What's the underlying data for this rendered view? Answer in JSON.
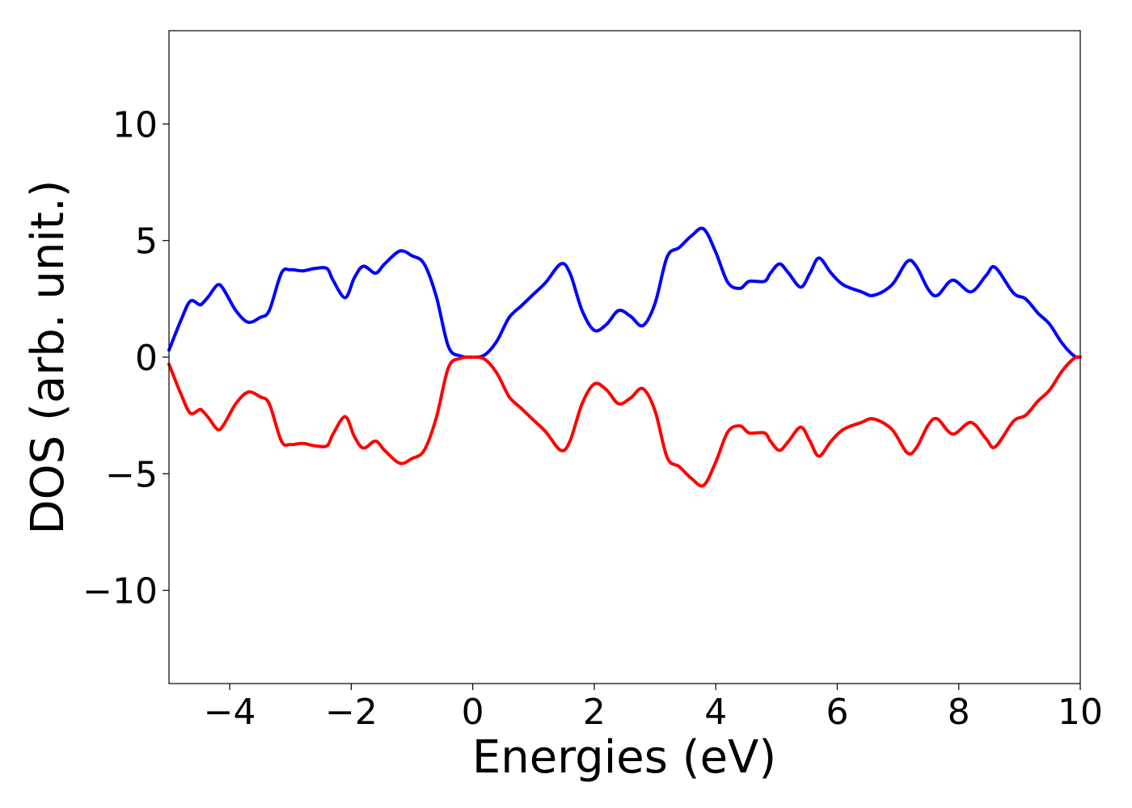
{
  "chart_data": {
    "type": "line",
    "title": "",
    "xlabel": "Energies (eV)",
    "ylabel": "DOS (arb. unit.)",
    "xlim": [
      -5,
      10
    ],
    "ylim": [
      -14,
      14
    ],
    "xticks": [
      -4,
      -2,
      0,
      2,
      4,
      6,
      8,
      10
    ],
    "xtick_labels": [
      "−4",
      "−2",
      "0",
      "2",
      "4",
      "6",
      "8",
      "10"
    ],
    "yticks": [
      -10,
      -5,
      0,
      5,
      10
    ],
    "ytick_labels": [
      "−10",
      "−5",
      "0",
      "5",
      "10"
    ],
    "grid": false,
    "legend": "none",
    "series": [
      {
        "color": "#0000ff",
        "x": [
          -5.0,
          -4.8,
          -4.65,
          -4.5,
          -4.45,
          -4.35,
          -4.2,
          -4.1,
          -3.9,
          -3.7,
          -3.5,
          -3.35,
          -3.15,
          -3.0,
          -2.8,
          -2.6,
          -2.4,
          -2.3,
          -2.1,
          -1.95,
          -1.8,
          -1.6,
          -1.45,
          -1.2,
          -1.0,
          -0.8,
          -0.6,
          -0.4,
          -0.2,
          0.0,
          0.2,
          0.4,
          0.6,
          0.8,
          1.0,
          1.2,
          1.45,
          1.6,
          1.8,
          2.0,
          2.2,
          2.4,
          2.6,
          2.8,
          3.0,
          3.2,
          3.4,
          3.6,
          3.8,
          4.0,
          4.2,
          4.4,
          4.55,
          4.8,
          4.9,
          5.05,
          5.2,
          5.4,
          5.55,
          5.7,
          5.9,
          6.1,
          6.4,
          6.6,
          6.9,
          7.15,
          7.3,
          7.5,
          7.65,
          7.9,
          8.2,
          8.45,
          8.6,
          8.9,
          9.1,
          9.3,
          9.5,
          9.7,
          9.9,
          10.0
        ],
        "values": [
          0.3,
          1.6,
          2.4,
          2.25,
          2.3,
          2.6,
          3.1,
          2.9,
          2.0,
          1.5,
          1.7,
          2.0,
          3.6,
          3.75,
          3.7,
          3.8,
          3.8,
          3.3,
          2.55,
          3.4,
          3.9,
          3.6,
          4.0,
          4.55,
          4.35,
          4.0,
          2.6,
          0.45,
          0.05,
          0.0,
          0.1,
          0.7,
          1.7,
          2.2,
          2.7,
          3.2,
          4.0,
          3.6,
          2.0,
          1.15,
          1.4,
          2.0,
          1.75,
          1.35,
          2.3,
          4.3,
          4.7,
          5.2,
          5.5,
          4.5,
          3.2,
          2.95,
          3.25,
          3.25,
          3.6,
          4.0,
          3.6,
          3.0,
          3.6,
          4.25,
          3.6,
          3.1,
          2.8,
          2.65,
          3.1,
          4.1,
          3.9,
          2.9,
          2.65,
          3.3,
          2.8,
          3.5,
          3.85,
          2.75,
          2.5,
          1.9,
          1.4,
          0.6,
          0.05,
          0.0
        ]
      },
      {
        "color": "#ff0000",
        "x": [
          -5.0,
          -4.8,
          -4.65,
          -4.5,
          -4.45,
          -4.35,
          -4.2,
          -4.1,
          -3.9,
          -3.7,
          -3.5,
          -3.35,
          -3.15,
          -3.0,
          -2.8,
          -2.6,
          -2.4,
          -2.3,
          -2.1,
          -1.95,
          -1.8,
          -1.6,
          -1.45,
          -1.2,
          -1.0,
          -0.8,
          -0.6,
          -0.4,
          -0.2,
          0.0,
          0.2,
          0.4,
          0.6,
          0.8,
          1.0,
          1.2,
          1.45,
          1.6,
          1.8,
          2.0,
          2.2,
          2.4,
          2.6,
          2.8,
          3.0,
          3.2,
          3.4,
          3.6,
          3.8,
          4.0,
          4.2,
          4.4,
          4.55,
          4.8,
          4.9,
          5.05,
          5.2,
          5.4,
          5.55,
          5.7,
          5.9,
          6.1,
          6.4,
          6.6,
          6.9,
          7.15,
          7.3,
          7.5,
          7.65,
          7.9,
          8.2,
          8.45,
          8.6,
          8.9,
          9.1,
          9.3,
          9.5,
          9.7,
          9.9,
          10.0
        ],
        "values": [
          -0.3,
          -1.6,
          -2.4,
          -2.25,
          -2.3,
          -2.6,
          -3.1,
          -2.9,
          -2.0,
          -1.5,
          -1.7,
          -2.0,
          -3.6,
          -3.75,
          -3.7,
          -3.8,
          -3.8,
          -3.3,
          -2.55,
          -3.4,
          -3.9,
          -3.6,
          -4.0,
          -4.55,
          -4.35,
          -4.0,
          -2.6,
          -0.45,
          -0.05,
          0.0,
          -0.1,
          -0.7,
          -1.7,
          -2.2,
          -2.7,
          -3.2,
          -4.0,
          -3.6,
          -2.0,
          -1.15,
          -1.4,
          -2.0,
          -1.75,
          -1.35,
          -2.3,
          -4.3,
          -4.7,
          -5.2,
          -5.5,
          -4.5,
          -3.2,
          -2.95,
          -3.25,
          -3.25,
          -3.6,
          -4.0,
          -3.6,
          -3.0,
          -3.6,
          -4.25,
          -3.6,
          -3.1,
          -2.8,
          -2.65,
          -3.1,
          -4.1,
          -3.9,
          -2.9,
          -2.65,
          -3.3,
          -2.8,
          -3.5,
          -3.85,
          -2.75,
          -2.5,
          -1.9,
          -1.4,
          -0.6,
          -0.05,
          0.0
        ]
      }
    ]
  }
}
